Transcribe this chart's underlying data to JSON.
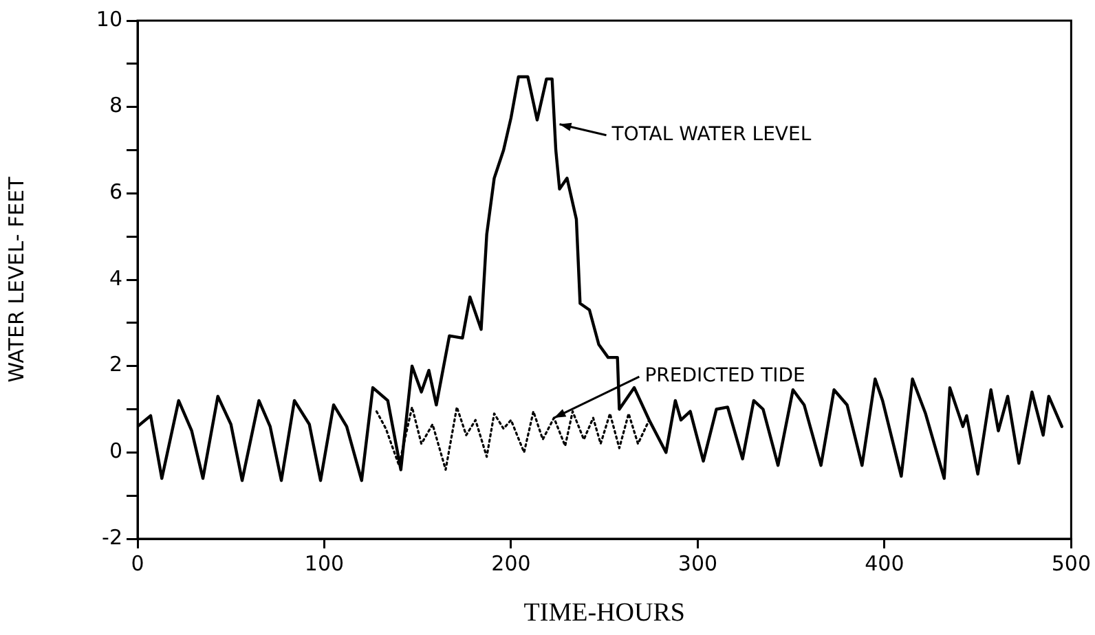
{
  "chart_data": {
    "type": "line",
    "xlabel": "TIME-HOURS",
    "ylabel": "WATER LEVEL- FEET",
    "xlim": [
      0,
      500
    ],
    "ylim": [
      -2,
      10
    ],
    "xticks": [
      0,
      100,
      200,
      300,
      400,
      500
    ],
    "yticks": [
      {
        "value": -2,
        "label": "-2"
      },
      {
        "value": -1,
        "label": null
      },
      0,
      {
        "value": 1,
        "label": null
      },
      2,
      {
        "value": 3,
        "label": null
      },
      4,
      {
        "value": 5,
        "label": null
      },
      6,
      {
        "value": 7,
        "label": null
      },
      8,
      {
        "value": 9,
        "label": null
      },
      10
    ],
    "grid": false,
    "series": [
      {
        "color": "#000000",
        "line_style": "solid",
        "x": [
          0,
          7,
          13,
          22,
          29,
          35,
          43,
          50,
          56,
          65,
          71,
          77,
          84,
          92,
          98,
          105,
          112,
          120,
          126,
          134,
          141,
          147,
          152,
          156,
          160,
          167,
          174,
          178,
          184,
          187,
          191,
          196,
          200,
          204,
          209,
          214,
          219,
          222,
          224,
          226,
          230,
          235,
          237,
          242,
          247,
          252,
          257,
          258,
          266,
          274,
          283,
          288,
          291,
          296,
          303,
          310,
          316,
          324,
          330,
          335,
          343,
          351,
          357,
          366,
          373,
          380,
          388,
          395,
          399,
          409,
          415,
          422,
          432,
          435,
          442,
          444,
          450,
          457,
          461,
          466,
          472,
          479,
          485,
          488,
          495
        ],
        "values": [
          0.6,
          0.85,
          -0.6,
          1.2,
          0.5,
          -0.6,
          1.3,
          0.65,
          -0.65,
          1.2,
          0.6,
          -0.65,
          1.2,
          0.65,
          -0.65,
          1.1,
          0.6,
          -0.65,
          1.5,
          1.2,
          -0.4,
          2.0,
          1.4,
          1.9,
          1.1,
          2.7,
          2.65,
          3.6,
          2.85,
          5.05,
          6.35,
          7.0,
          7.75,
          8.7,
          8.7,
          7.7,
          8.65,
          8.65,
          7.0,
          6.1,
          6.35,
          5.4,
          3.45,
          3.3,
          2.5,
          2.2,
          2.2,
          1.0,
          1.5,
          0.75,
          0.0,
          1.2,
          0.75,
          0.95,
          -0.2,
          1.0,
          1.05,
          -0.15,
          1.2,
          1.0,
          -0.3,
          1.45,
          1.1,
          -0.3,
          1.45,
          1.1,
          -0.3,
          1.7,
          1.2,
          -0.55,
          1.7,
          0.9,
          -0.6,
          1.5,
          0.6,
          0.85,
          -0.5,
          1.45,
          0.5,
          1.3,
          -0.25,
          1.4,
          0.4,
          1.3,
          0.6
        ]
      },
      {
        "color": "#000000",
        "line_style": "dotted",
        "x": [
          128,
          133,
          140,
          147,
          152,
          158,
          165,
          171,
          176,
          181,
          187,
          191,
          196,
          200,
          207,
          212,
          217,
          223,
          229,
          233,
          239,
          244,
          248,
          253,
          258,
          263,
          268,
          274
        ],
        "values": [
          0.95,
          0.55,
          -0.3,
          1.05,
          0.2,
          0.65,
          -0.4,
          1.05,
          0.4,
          0.75,
          -0.1,
          0.9,
          0.55,
          0.75,
          0.0,
          0.95,
          0.3,
          0.8,
          0.15,
          0.95,
          0.3,
          0.8,
          0.2,
          0.9,
          0.1,
          0.9,
          0.2,
          0.75
        ]
      }
    ],
    "annotations": [
      {
        "text": "TOTAL WATER LEVEL",
        "x": 226,
        "y": 7.6
      },
      {
        "text": "PREDICTED TIDE",
        "x": 223,
        "y": 0.8
      }
    ]
  }
}
